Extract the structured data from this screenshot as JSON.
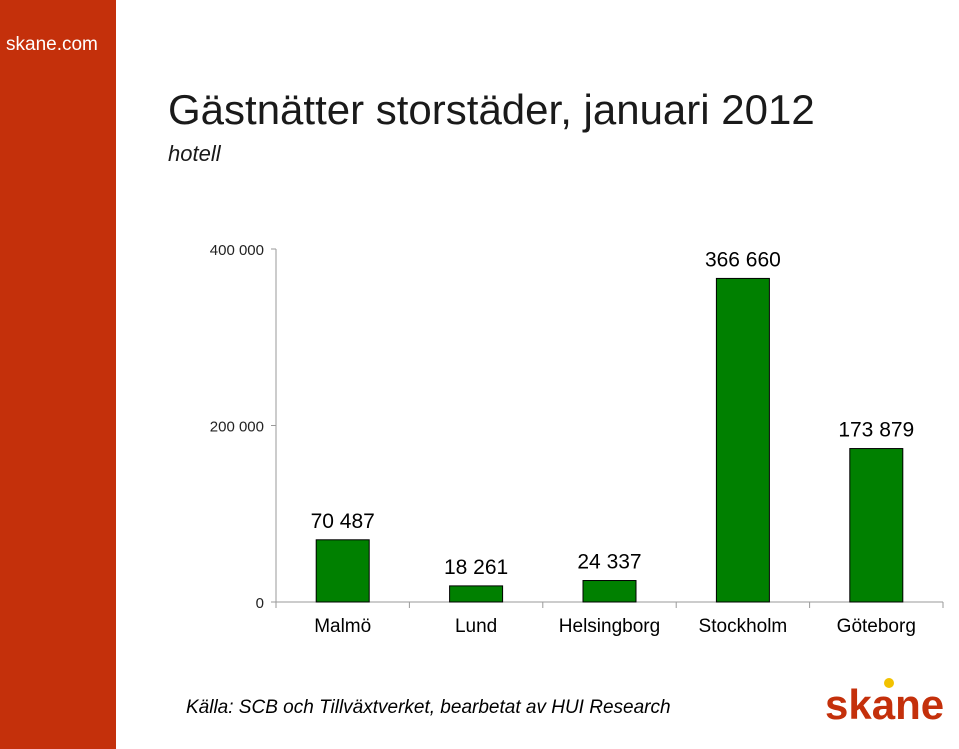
{
  "sidebar": {
    "site": "skane.com"
  },
  "colors": {
    "sidebar": "#c4300b",
    "bar": "#008000",
    "logo": "#c4300b",
    "logo_dot": "#f2c200"
  },
  "chart_data": {
    "type": "bar",
    "title": "Gästnätter storstäder, januari 2012",
    "subtitle": "hotell",
    "categories": [
      "Malmö",
      "Lund",
      "Helsingborg",
      "Stockholm",
      "Göteborg"
    ],
    "values": [
      70487,
      18261,
      24337,
      366660,
      173879
    ],
    "data_labels": [
      "70 487",
      "18 261",
      "24 337",
      "366 660",
      "173 879"
    ],
    "ylim": [
      0,
      400000
    ],
    "yticks": [
      0,
      200000,
      400000
    ],
    "ytick_labels": [
      "0",
      "200 000",
      "400 000"
    ],
    "grid": false,
    "legend": "none"
  },
  "footer": {
    "source": "Källa: SCB och Tillväxtverket, bearbetat av HUI Research"
  },
  "logo": {
    "text": "skane"
  }
}
